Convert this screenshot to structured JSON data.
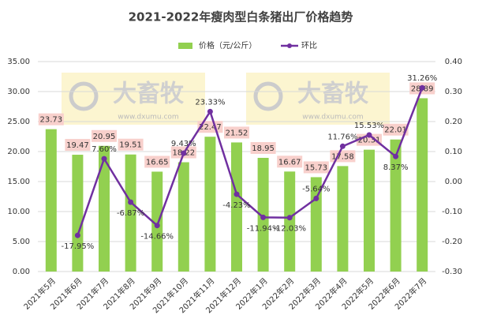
{
  "chart_data": {
    "type": "bar_line",
    "title": "2021-2022年瘦肉型白条猪出厂价格趋势",
    "watermark": {
      "text": "大畜牧",
      "url": "www.dxumu.com"
    },
    "categories": [
      "2021年5月",
      "2021年6月",
      "2021年7月",
      "2021年8月",
      "2021年9月",
      "2021年10月",
      "2021年11月",
      "2021年12月",
      "2022年1月",
      "2022年2月",
      "2022年3月",
      "2022年4月",
      "2022年5月",
      "2022年6月",
      "2022年7月"
    ],
    "series": [
      {
        "name": "价格（元/公斤）",
        "color": "#92d050",
        "type": "bar",
        "values": [
          23.73,
          19.47,
          20.95,
          19.51,
          16.65,
          18.22,
          22.47,
          21.52,
          18.95,
          16.67,
          15.73,
          17.58,
          20.31,
          22.01,
          28.89
        ]
      },
      {
        "name": "环比",
        "color": "#7030a0",
        "type": "line",
        "axis": "y2",
        "values": [
          null,
          -0.1795,
          0.076,
          -0.0687,
          -0.1466,
          0.0943,
          0.2333,
          -0.0423,
          -0.1194,
          -0.1203,
          -0.0564,
          0.1176,
          0.1553,
          0.0837,
          0.3126
        ],
        "value_labels": [
          null,
          "-17.95%",
          "7.60%",
          "-6.87%",
          "-14.66%",
          "9.43%",
          "23.33%",
          "-4.23%",
          "-11.94%",
          "-12.03%",
          "-5.64%",
          "11.76%",
          "15.53%",
          "8.37%",
          "31.26%"
        ]
      }
    ],
    "ylim": [
      0,
      35
    ],
    "yticks": [
      {
        "value": 0,
        "label": "0.00"
      },
      {
        "value": 5,
        "label": "5.00"
      },
      {
        "value": 10,
        "label": "10.00"
      },
      {
        "value": 15,
        "label": "15.00"
      },
      {
        "value": 20,
        "label": "20.00"
      },
      {
        "value": 25,
        "label": "25.00"
      },
      {
        "value": 30,
        "label": "30.00"
      },
      {
        "value": 35,
        "label": "35.00"
      }
    ],
    "y2lim": [
      -0.3,
      0.4
    ],
    "y2ticks": [
      {
        "value": -0.3,
        "label": "-0.30"
      },
      {
        "value": -0.2,
        "label": "-0.20"
      },
      {
        "value": -0.1,
        "label": "-0.10"
      },
      {
        "value": 0,
        "label": "0.00"
      },
      {
        "value": 0.1,
        "label": "0.10"
      },
      {
        "value": 0.2,
        "label": "0.20"
      },
      {
        "value": 0.3,
        "label": "0.30"
      },
      {
        "value": 0.4,
        "label": "0.40"
      }
    ],
    "grid": true,
    "legend": "top"
  }
}
